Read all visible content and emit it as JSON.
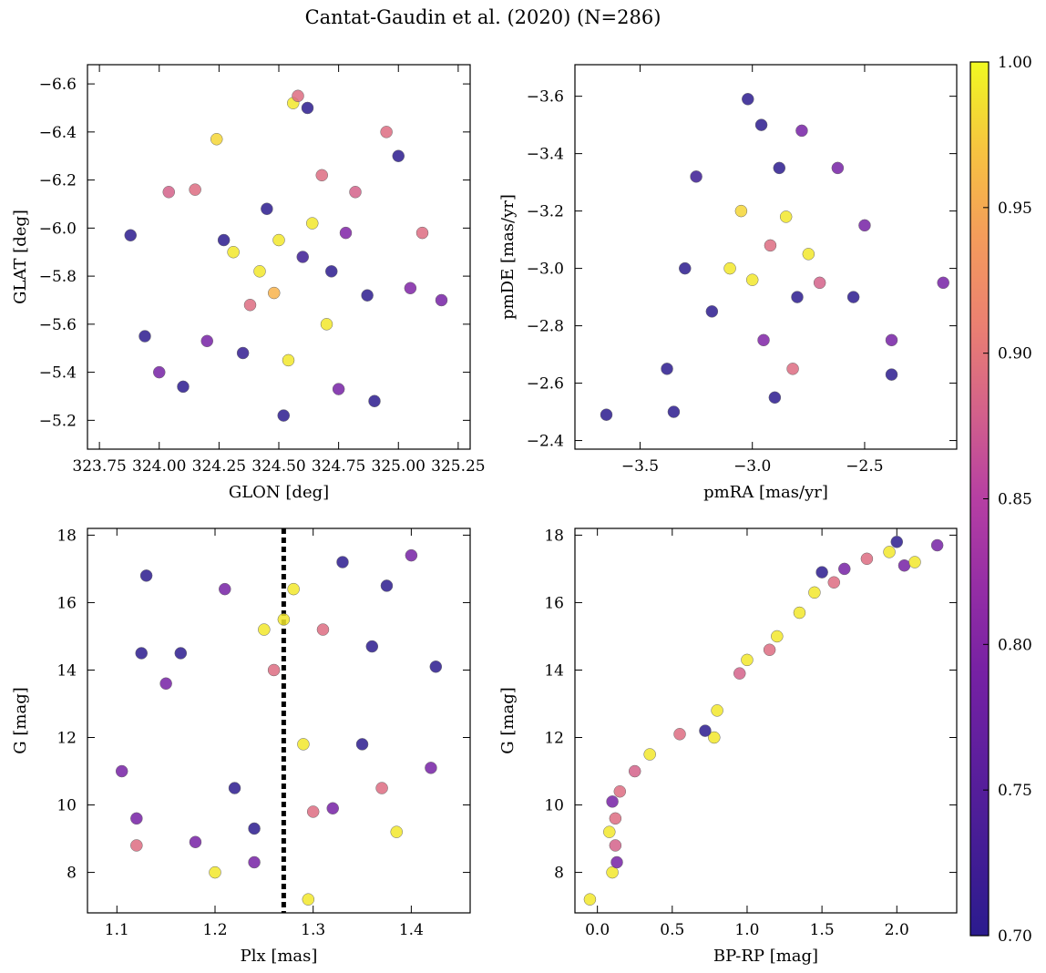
{
  "figure": {
    "title": "Cantat-Gaudin et al. (2020) (N=286)",
    "colormap": "plasma",
    "colorbar": {
      "range": [
        0.7,
        1.0
      ],
      "ticks": [
        "0.70",
        "0.75",
        "0.80",
        "0.85",
        "0.90",
        "0.95",
        "1.00"
      ]
    },
    "colors": {
      "low": "#2b1b8e",
      "mid": "#b63fa3",
      "high": "#f0f921",
      "edge": "#555555"
    }
  },
  "chart_data": [
    {
      "id": "radec",
      "type": "scatter",
      "title": "",
      "xlabel": "GLON [deg]",
      "ylabel": "GLAT [deg]",
      "xlim": [
        323.7,
        325.3
      ],
      "ylim": [
        -6.68,
        -5.08
      ],
      "xticks": [
        "323.75",
        "324.00",
        "324.25",
        "324.50",
        "324.75",
        "325.00",
        "325.25"
      ],
      "yticks": [
        "-5.2",
        "-5.4",
        "-5.6",
        "-5.8",
        "-6.0",
        "-6.2",
        "-6.4",
        "-6.6"
      ],
      "sample_points": [
        {
          "x": 323.88,
          "y": -5.97,
          "p": 0.7
        },
        {
          "x": 323.94,
          "y": -5.55,
          "p": 0.7
        },
        {
          "x": 324.0,
          "y": -5.4,
          "p": 0.79
        },
        {
          "x": 324.04,
          "y": -6.15,
          "p": 0.88
        },
        {
          "x": 324.1,
          "y": -5.34,
          "p": 0.7
        },
        {
          "x": 324.15,
          "y": -6.16,
          "p": 0.89
        },
        {
          "x": 324.2,
          "y": -5.53,
          "p": 0.79
        },
        {
          "x": 324.24,
          "y": -6.37,
          "p": 0.98
        },
        {
          "x": 324.27,
          "y": -5.95,
          "p": 0.7
        },
        {
          "x": 324.31,
          "y": -5.9,
          "p": 0.99
        },
        {
          "x": 324.35,
          "y": -5.48,
          "p": 0.71
        },
        {
          "x": 324.38,
          "y": -5.68,
          "p": 0.89
        },
        {
          "x": 324.42,
          "y": -5.82,
          "p": 0.99
        },
        {
          "x": 324.45,
          "y": -6.08,
          "p": 0.7
        },
        {
          "x": 324.48,
          "y": -5.73,
          "p": 0.96
        },
        {
          "x": 324.5,
          "y": -5.95,
          "p": 0.99
        },
        {
          "x": 324.52,
          "y": -5.22,
          "p": 0.7
        },
        {
          "x": 324.54,
          "y": -5.45,
          "p": 0.99
        },
        {
          "x": 324.56,
          "y": -6.52,
          "p": 0.99
        },
        {
          "x": 324.58,
          "y": -6.55,
          "p": 0.89
        },
        {
          "x": 324.6,
          "y": -5.88,
          "p": 0.72
        },
        {
          "x": 324.62,
          "y": -6.5,
          "p": 0.7
        },
        {
          "x": 324.64,
          "y": -6.02,
          "p": 0.99
        },
        {
          "x": 324.68,
          "y": -6.22,
          "p": 0.89
        },
        {
          "x": 324.7,
          "y": -5.6,
          "p": 0.99
        },
        {
          "x": 324.72,
          "y": -5.82,
          "p": 0.7
        },
        {
          "x": 324.75,
          "y": -5.33,
          "p": 0.79
        },
        {
          "x": 324.78,
          "y": -5.98,
          "p": 0.8
        },
        {
          "x": 324.82,
          "y": -6.15,
          "p": 0.88
        },
        {
          "x": 324.87,
          "y": -5.72,
          "p": 0.7
        },
        {
          "x": 324.9,
          "y": -5.28,
          "p": 0.7
        },
        {
          "x": 324.95,
          "y": -6.4,
          "p": 0.89
        },
        {
          "x": 325.0,
          "y": -6.3,
          "p": 0.7
        },
        {
          "x": 325.05,
          "y": -5.75,
          "p": 0.8
        },
        {
          "x": 325.1,
          "y": -5.98,
          "p": 0.89
        },
        {
          "x": 325.18,
          "y": -5.7,
          "p": 0.79
        }
      ]
    },
    {
      "id": "pm",
      "type": "scatter",
      "title": "",
      "xlabel": "pmRA [mas/yr]",
      "ylabel": "pmDE [mas/yr]",
      "xlim": [
        -3.79,
        -2.09
      ],
      "ylim": [
        -3.71,
        -2.37
      ],
      "xticks": [
        "-3.5",
        "-3.0",
        "-2.5"
      ],
      "yticks": [
        "-2.4",
        "-2.6",
        "-2.8",
        "-3.0",
        "-3.2",
        "-3.4",
        "-3.6"
      ],
      "sample_points": [
        {
          "x": -3.65,
          "y": -2.49,
          "p": 0.7
        },
        {
          "x": -3.35,
          "y": -2.5,
          "p": 0.7
        },
        {
          "x": -3.38,
          "y": -2.65,
          "p": 0.7
        },
        {
          "x": -3.3,
          "y": -3.0,
          "p": 0.7
        },
        {
          "x": -3.25,
          "y": -3.32,
          "p": 0.72
        },
        {
          "x": -3.18,
          "y": -2.85,
          "p": 0.7
        },
        {
          "x": -3.1,
          "y": -3.0,
          "p": 0.99
        },
        {
          "x": -3.05,
          "y": -3.2,
          "p": 0.98
        },
        {
          "x": -3.0,
          "y": -2.96,
          "p": 0.99
        },
        {
          "x": -2.95,
          "y": -2.75,
          "p": 0.8
        },
        {
          "x": -2.92,
          "y": -3.08,
          "p": 0.89
        },
        {
          "x": -2.9,
          "y": -2.55,
          "p": 0.7
        },
        {
          "x": -2.88,
          "y": -3.35,
          "p": 0.7
        },
        {
          "x": -2.85,
          "y": -3.18,
          "p": 0.99
        },
        {
          "x": -2.82,
          "y": -2.65,
          "p": 0.89
        },
        {
          "x": -2.8,
          "y": -2.9,
          "p": 0.7
        },
        {
          "x": -2.78,
          "y": -3.48,
          "p": 0.79
        },
        {
          "x": -2.75,
          "y": -3.05,
          "p": 0.99
        },
        {
          "x": -2.7,
          "y": -2.95,
          "p": 0.88
        },
        {
          "x": -2.62,
          "y": -3.35,
          "p": 0.79
        },
        {
          "x": -2.55,
          "y": -2.9,
          "p": 0.7
        },
        {
          "x": -2.5,
          "y": -3.15,
          "p": 0.79
        },
        {
          "x": -2.38,
          "y": -2.63,
          "p": 0.7
        },
        {
          "x": -2.38,
          "y": -2.75,
          "p": 0.79
        },
        {
          "x": -2.15,
          "y": -2.95,
          "p": 0.79
        },
        {
          "x": -2.96,
          "y": -3.5,
          "p": 0.7
        },
        {
          "x": -3.02,
          "y": -3.59,
          "p": 0.7
        }
      ]
    },
    {
      "id": "plx",
      "type": "scatter",
      "title": "",
      "xlabel": "Plx [mas]",
      "ylabel": "G [mag]",
      "xlim": [
        1.07,
        1.46
      ],
      "ylim": [
        18.2,
        6.8
      ],
      "xticks": [
        "1.1",
        "1.2",
        "1.3",
        "1.4"
      ],
      "yticks": [
        "8",
        "10",
        "12",
        "14",
        "16",
        "18"
      ],
      "vline": 1.27,
      "sample_points": [
        {
          "x": 1.105,
          "y": 11.0,
          "p": 0.79
        },
        {
          "x": 1.12,
          "y": 8.8,
          "p": 0.89
        },
        {
          "x": 1.12,
          "y": 9.6,
          "p": 0.79
        },
        {
          "x": 1.125,
          "y": 14.5,
          "p": 0.7
        },
        {
          "x": 1.13,
          "y": 16.8,
          "p": 0.7
        },
        {
          "x": 1.15,
          "y": 13.6,
          "p": 0.79
        },
        {
          "x": 1.165,
          "y": 14.5,
          "p": 0.7
        },
        {
          "x": 1.18,
          "y": 8.9,
          "p": 0.79
        },
        {
          "x": 1.2,
          "y": 8.0,
          "p": 0.99
        },
        {
          "x": 1.21,
          "y": 16.4,
          "p": 0.79
        },
        {
          "x": 1.22,
          "y": 10.5,
          "p": 0.7
        },
        {
          "x": 1.24,
          "y": 8.3,
          "p": 0.79
        },
        {
          "x": 1.24,
          "y": 9.3,
          "p": 0.7
        },
        {
          "x": 1.25,
          "y": 15.2,
          "p": 0.99
        },
        {
          "x": 1.26,
          "y": 14.0,
          "p": 0.89
        },
        {
          "x": 1.27,
          "y": 15.5,
          "p": 0.99
        },
        {
          "x": 1.28,
          "y": 16.4,
          "p": 0.99
        },
        {
          "x": 1.29,
          "y": 11.8,
          "p": 0.99
        },
        {
          "x": 1.295,
          "y": 7.2,
          "p": 0.99
        },
        {
          "x": 1.3,
          "y": 9.8,
          "p": 0.89
        },
        {
          "x": 1.31,
          "y": 15.2,
          "p": 0.89
        },
        {
          "x": 1.32,
          "y": 9.9,
          "p": 0.79
        },
        {
          "x": 1.33,
          "y": 17.2,
          "p": 0.7
        },
        {
          "x": 1.35,
          "y": 11.8,
          "p": 0.7
        },
        {
          "x": 1.36,
          "y": 14.7,
          "p": 0.7
        },
        {
          "x": 1.37,
          "y": 10.5,
          "p": 0.89
        },
        {
          "x": 1.375,
          "y": 16.5,
          "p": 0.7
        },
        {
          "x": 1.385,
          "y": 9.2,
          "p": 0.99
        },
        {
          "x": 1.4,
          "y": 17.4,
          "p": 0.79
        },
        {
          "x": 1.42,
          "y": 11.1,
          "p": 0.79
        },
        {
          "x": 1.425,
          "y": 14.1,
          "p": 0.7
        }
      ]
    },
    {
      "id": "cmd",
      "type": "scatter",
      "title": "",
      "xlabel": "BP-RP [mag]",
      "ylabel": "G [mag]",
      "xlim": [
        -0.15,
        2.4
      ],
      "ylim": [
        18.2,
        6.8
      ],
      "xticks": [
        "0.0",
        "0.5",
        "1.0",
        "1.5",
        "2.0"
      ],
      "yticks": [
        "8",
        "10",
        "12",
        "14",
        "16",
        "18"
      ],
      "sample_points": [
        {
          "x": -0.05,
          "y": 7.2,
          "p": 0.99
        },
        {
          "x": 0.1,
          "y": 8.0,
          "p": 0.99
        },
        {
          "x": 0.13,
          "y": 8.3,
          "p": 0.79
        },
        {
          "x": 0.12,
          "y": 8.8,
          "p": 0.88
        },
        {
          "x": 0.08,
          "y": 9.2,
          "p": 0.99
        },
        {
          "x": 0.12,
          "y": 9.6,
          "p": 0.89
        },
        {
          "x": 0.1,
          "y": 10.1,
          "p": 0.79
        },
        {
          "x": 0.15,
          "y": 10.4,
          "p": 0.89
        },
        {
          "x": 0.25,
          "y": 11.0,
          "p": 0.88
        },
        {
          "x": 0.35,
          "y": 11.5,
          "p": 0.99
        },
        {
          "x": 0.55,
          "y": 12.1,
          "p": 0.89
        },
        {
          "x": 0.78,
          "y": 12.0,
          "p": 0.99
        },
        {
          "x": 0.72,
          "y": 12.2,
          "p": 0.7
        },
        {
          "x": 0.8,
          "y": 12.8,
          "p": 0.99
        },
        {
          "x": 0.95,
          "y": 13.9,
          "p": 0.88
        },
        {
          "x": 1.0,
          "y": 14.3,
          "p": 0.99
        },
        {
          "x": 1.15,
          "y": 14.6,
          "p": 0.89
        },
        {
          "x": 1.2,
          "y": 15.0,
          "p": 0.99
        },
        {
          "x": 1.35,
          "y": 15.7,
          "p": 0.99
        },
        {
          "x": 1.45,
          "y": 16.3,
          "p": 0.99
        },
        {
          "x": 1.5,
          "y": 16.9,
          "p": 0.7
        },
        {
          "x": 1.58,
          "y": 16.6,
          "p": 0.89
        },
        {
          "x": 1.65,
          "y": 17.0,
          "p": 0.79
        },
        {
          "x": 1.8,
          "y": 17.3,
          "p": 0.89
        },
        {
          "x": 1.95,
          "y": 17.5,
          "p": 0.99
        },
        {
          "x": 2.0,
          "y": 17.8,
          "p": 0.7
        },
        {
          "x": 2.05,
          "y": 17.1,
          "p": 0.79
        },
        {
          "x": 2.12,
          "y": 17.2,
          "p": 0.99
        },
        {
          "x": 2.27,
          "y": 17.7,
          "p": 0.79
        }
      ]
    }
  ]
}
